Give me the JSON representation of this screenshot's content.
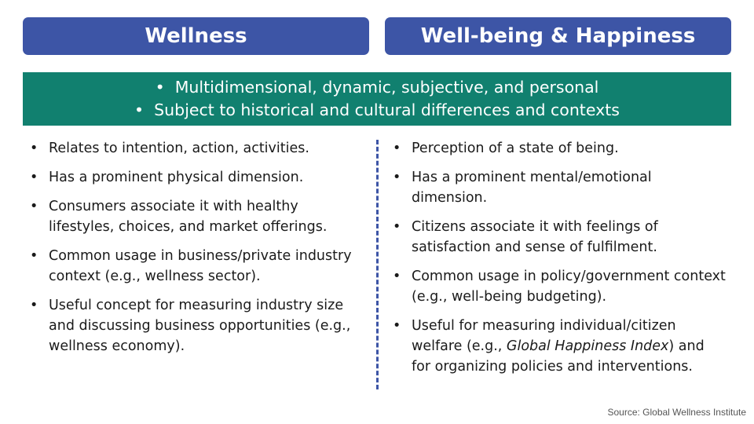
{
  "header": {
    "left_title": "Wellness",
    "right_title": "Well-being & Happiness"
  },
  "banner": {
    "lines": [
      "Multidimensional, dynamic, subjective, and personal",
      "Subject to historical and cultural differences and contexts"
    ]
  },
  "bullet_glyph": "•",
  "left_items": [
    "Relates to intention, action, activities.",
    "Has a prominent physical dimension.",
    "Consumers associate it with healthy lifestyles, choices, and market offerings.",
    "Common usage in business/private industry context (e.g., wellness sector).",
    "Useful concept for measuring industry size and discussing business opportunities (e.g., wellness economy)."
  ],
  "right_items": [
    {
      "text": "Perception of a state of being."
    },
    {
      "text": "Has a prominent mental/emotional dimension."
    },
    {
      "text": "Citizens associate it with feelings of satisfaction and sense of fulfilment."
    },
    {
      "text": "Common usage in policy/government context (e.g., well-being budgeting)."
    },
    {
      "before": "Useful for measuring individual/citizen welfare (e.g., ",
      "italic": "Global Happiness Index",
      "after": ") and for organizing policies and interventions."
    }
  ],
  "source": "Source: Global Wellness Institute",
  "colors": {
    "header_bg": "#3d55a6",
    "banner_bg": "#11806f",
    "divider": "#3d55a6"
  }
}
